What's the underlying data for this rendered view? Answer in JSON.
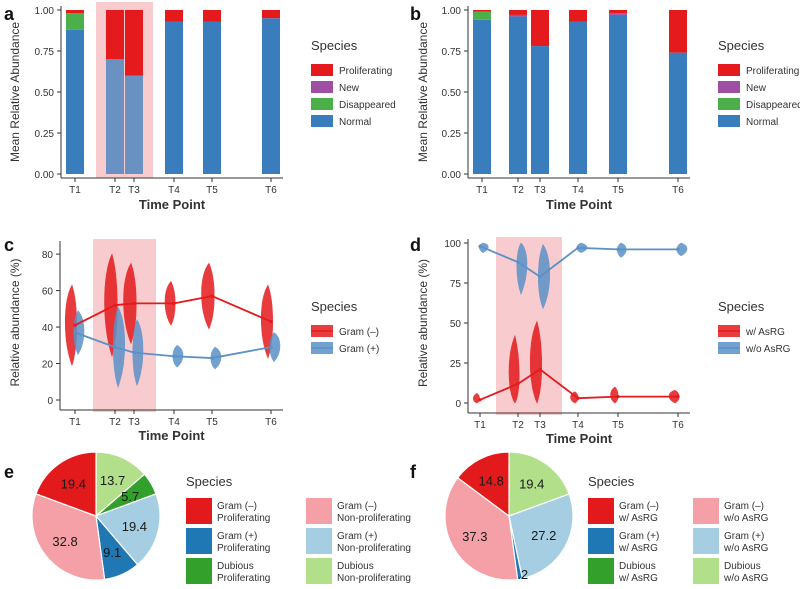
{
  "colors": {
    "proliferating": "#e41a1c",
    "new": "#9e4fa3",
    "disappeared": "#4daf4a",
    "normal": "#3a7dbd",
    "shade": "#f7c3c6",
    "gram_neg": "#e41a1c",
    "gram_pos": "#5b91c7",
    "pie_red": "#e31a1c",
    "pie_blue": "#1f78b4",
    "pie_green": "#33a02c",
    "pie_pink": "#f4a0a6",
    "pie_lightblue": "#a6cee3",
    "pie_lightgreen": "#b2df8a"
  },
  "chart_data": [
    {
      "panel": "a",
      "type": "bar",
      "stacked": true,
      "categories": [
        "T1",
        "T2",
        "T3",
        "T4",
        "T5",
        "T6"
      ],
      "xlabel": "Time Point",
      "ylabel": "Mean Relative Abundance",
      "ylim": [
        0,
        1
      ],
      "yticks": [
        "0.00",
        "0.25",
        "0.50",
        "0.75",
        "1.00"
      ],
      "shaded": [
        "T2",
        "T3"
      ],
      "legend_title": "Species",
      "series": [
        {
          "name": "Normal",
          "values": [
            0.88,
            0.7,
            0.6,
            0.93,
            0.93,
            0.95
          ]
        },
        {
          "name": "Disappeared",
          "values": [
            0.1,
            0.0,
            0.0,
            0.0,
            0.0,
            0.0
          ]
        },
        {
          "name": "New",
          "values": [
            0.0,
            0.0,
            0.0,
            0.0,
            0.0,
            0.0
          ]
        },
        {
          "name": "Proliferating",
          "values": [
            0.02,
            0.3,
            0.4,
            0.07,
            0.07,
            0.05
          ]
        }
      ],
      "legend_order": [
        "Proliferating",
        "New",
        "Disappeared",
        "Normal"
      ]
    },
    {
      "panel": "b",
      "type": "bar",
      "stacked": true,
      "categories": [
        "T1",
        "T2",
        "T3",
        "T4",
        "T5",
        "T6"
      ],
      "xlabel": "Time Point",
      "ylabel": "Mean Relative Abundance",
      "ylim": [
        0,
        1
      ],
      "yticks": [
        "0.00",
        "0.25",
        "0.50",
        "0.75",
        "1.00"
      ],
      "legend_title": "Species",
      "series": [
        {
          "name": "Normal",
          "values": [
            0.94,
            0.96,
            0.78,
            0.93,
            0.97,
            0.74
          ]
        },
        {
          "name": "Disappeared",
          "values": [
            0.05,
            0.0,
            0.0,
            0.0,
            0.0,
            0.0
          ]
        },
        {
          "name": "New",
          "values": [
            0.0,
            0.01,
            0.0,
            0.0,
            0.01,
            0.0
          ]
        },
        {
          "name": "Proliferating",
          "values": [
            0.01,
            0.03,
            0.22,
            0.07,
            0.02,
            0.26
          ]
        }
      ],
      "legend_order": [
        "Proliferating",
        "New",
        "Disappeared",
        "Normal"
      ]
    },
    {
      "panel": "c",
      "type": "line",
      "categories": [
        "T1",
        "T2",
        "T3",
        "T4",
        "T5",
        "T6"
      ],
      "xlabel": "Time Point",
      "ylabel": "Relative abundance (%)",
      "ylim": [
        0,
        85
      ],
      "yticks": [
        "0",
        "20",
        "40",
        "60",
        "80"
      ],
      "shaded": [
        "T2",
        "T3"
      ],
      "legend_title": "Species",
      "series": [
        {
          "name": "Gram (–)",
          "values": [
            41,
            52,
            53,
            53,
            57,
            43
          ]
        },
        {
          "name": "Gram (+)",
          "values": [
            37,
            29,
            26,
            24,
            23,
            29
          ]
        }
      ]
    },
    {
      "panel": "d",
      "type": "line",
      "categories": [
        "T1",
        "T2",
        "T3",
        "T4",
        "T5",
        "T6"
      ],
      "xlabel": "Time Point",
      "ylabel": "Relative abundance (%)",
      "ylim": [
        0,
        100
      ],
      "yticks": [
        "0",
        "25",
        "50",
        "75",
        "100"
      ],
      "shaded": [
        "T2",
        "T3"
      ],
      "legend_title": "Species",
      "series": [
        {
          "name": "w/ AsRG",
          "values": [
            2,
            12,
            21,
            3,
            4,
            4
          ]
        },
        {
          "name": "w/o AsRG",
          "values": [
            98,
            88,
            79,
            97,
            96,
            96
          ]
        }
      ]
    },
    {
      "panel": "e",
      "type": "pie",
      "legend_title": "Species",
      "slices": [
        {
          "name": "Gram (–) Proliferating",
          "line1": "Gram (–)",
          "line2": "Proliferating",
          "value": 19.4,
          "label": "19.4",
          "color": "pie_red"
        },
        {
          "name": "Gram (–) Non-proliferating",
          "line1": "Gram (–)",
          "line2": "Non-proliferating",
          "value": 32.8,
          "label": "32.8",
          "color": "pie_pink"
        },
        {
          "name": "Gram (+) Proliferating",
          "line1": "Gram (+)",
          "line2": "Proliferating",
          "value": 9.1,
          "label": "9.1",
          "color": "pie_blue"
        },
        {
          "name": "Gram (+) Non-proliferating",
          "line1": "Gram (+)",
          "line2": "Non-proliferating",
          "value": 19.4,
          "label": "19.4",
          "color": "pie_lightblue"
        },
        {
          "name": "Dubious Proliferating",
          "line1": "Dubious",
          "line2": "Proliferating",
          "value": 5.7,
          "label": "5.7",
          "color": "pie_green"
        },
        {
          "name": "Dubious Non-proliferating",
          "line1": "Dubious",
          "line2": "Non-proliferating",
          "value": 13.7,
          "label": "13.7",
          "color": "pie_lightgreen"
        }
      ]
    },
    {
      "panel": "f",
      "type": "pie",
      "legend_title": "Species",
      "slices": [
        {
          "name": "Gram (–) w/ AsRG",
          "line1": "Gram (–)",
          "line2": "w/ AsRG",
          "value": 14.8,
          "label": "14.8",
          "color": "pie_red"
        },
        {
          "name": "Gram (–) w/o AsRG",
          "line1": "Gram (–)",
          "line2": "w/o AsRG",
          "value": 37.3,
          "label": "37.3",
          "color": "pie_pink"
        },
        {
          "name": "Gram (+) w/ AsRG",
          "line1": "Gram (+)",
          "line2": "w/ AsRG",
          "value": 1.2,
          "label": "1.2",
          "color": "pie_blue"
        },
        {
          "name": "Gram (+) w/o AsRG",
          "line1": "Gram (+)",
          "line2": "w/o AsRG",
          "value": 27.2,
          "label": "27.2",
          "color": "pie_lightblue"
        },
        {
          "name": "Dubious w/ AsRG",
          "line1": "Dubious",
          "line2": "w/ AsRG",
          "value": 0.0,
          "label": "",
          "color": "pie_green"
        },
        {
          "name": "Dubious w/o AsRG",
          "line1": "Dubious",
          "line2": "w/o AsRG",
          "value": 19.4,
          "label": "19.4",
          "color": "pie_lightgreen"
        }
      ]
    }
  ]
}
